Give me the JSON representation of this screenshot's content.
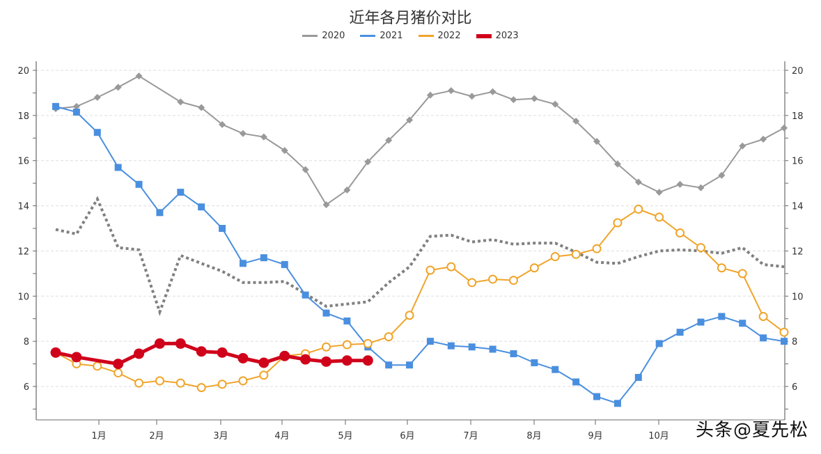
{
  "header": {
    "title": "近年各月猪价对比"
  },
  "legend": [
    {
      "label": "2020",
      "color": "#999999"
    },
    {
      "label": "2021",
      "color": "#4a8fdf"
    },
    {
      "label": "2022",
      "color": "#f0a42a"
    },
    {
      "label": "2023",
      "color": "#d0021b"
    }
  ],
  "watermark": "头条@夏先松",
  "chart_data": {
    "type": "line",
    "title": "近年各月猪价对比",
    "xlabel": "",
    "ylabel": "",
    "ylim": [
      4.6,
      20.5
    ],
    "y_ticks": [
      6,
      8,
      10,
      12,
      14,
      16,
      18,
      20
    ],
    "secondary_y_ticks": [
      6,
      8,
      10,
      12,
      14,
      16,
      18,
      20
    ],
    "grid": "horizontal dashed",
    "legend_position": "top",
    "x_tick_labels": [
      "1月",
      "2月",
      "3月",
      "4月",
      "5月",
      "6月",
      "7月",
      "8月",
      "9月",
      "10月"
    ],
    "x_points_note": "36 ten-day periods (上/中/下旬) per year",
    "series": [
      {
        "name": "2020",
        "style": "solid grey line, diamond markers",
        "values": [
          18.3,
          18.4,
          18.8,
          19.25,
          19.75,
          null,
          18.6,
          18.35,
          17.6,
          17.2,
          17.05,
          16.45,
          15.6,
          14.05,
          14.7,
          15.95,
          16.9,
          17.8,
          18.9,
          19.1,
          18.85,
          19.05,
          18.7,
          18.75,
          18.5,
          17.75,
          16.85,
          15.85,
          15.05,
          14.6,
          14.95,
          14.8,
          15.35,
          16.65,
          16.95,
          17.45
        ]
      },
      {
        "name": "2020 (dotted reference)",
        "style": "dotted dark grey line, no markers",
        "values": [
          12.95,
          12.75,
          14.3,
          12.15,
          12.05,
          9.3,
          11.8,
          11.45,
          11.1,
          10.6,
          10.6,
          10.65,
          10.1,
          9.55,
          9.65,
          9.75,
          10.6,
          11.3,
          12.65,
          12.7,
          12.4,
          12.5,
          12.3,
          12.35,
          12.35,
          11.95,
          11.5,
          11.45,
          11.75,
          12.0,
          12.05,
          12.0,
          11.9,
          12.15,
          11.4,
          11.3
        ]
      },
      {
        "name": "2021",
        "style": "solid blue line, square markers",
        "values": [
          18.4,
          18.15,
          17.25,
          15.7,
          14.95,
          13.7,
          14.6,
          13.95,
          13.0,
          11.45,
          11.7,
          11.4,
          10.05,
          9.25,
          8.9,
          7.75,
          6.95,
          6.95,
          8.0,
          7.8,
          7.75,
          7.65,
          7.45,
          7.05,
          6.75,
          6.2,
          5.55,
          5.25,
          6.4,
          7.9,
          8.4,
          8.85,
          9.1,
          8.8,
          8.15,
          8.0
        ]
      },
      {
        "name": "2022",
        "style": "solid orange line, hollow circle markers",
        "values": [
          7.5,
          7.0,
          6.9,
          6.6,
          6.15,
          6.25,
          6.15,
          5.95,
          6.1,
          6.25,
          6.5,
          7.35,
          7.45,
          7.75,
          7.85,
          7.9,
          8.2,
          9.15,
          11.15,
          11.3,
          10.6,
          10.75,
          10.7,
          11.25,
          11.75,
          11.85,
          12.1,
          13.25,
          13.85,
          13.5,
          12.8,
          12.15,
          11.25,
          11.0,
          9.1,
          8.4
        ]
      },
      {
        "name": "2023",
        "style": "thick red line, filled circle markers",
        "values": [
          7.5,
          7.3,
          null,
          7.0,
          7.45,
          7.9,
          7.9,
          7.55,
          7.5,
          7.25,
          7.05,
          7.35,
          7.2,
          7.1,
          7.15,
          7.15
        ]
      }
    ]
  }
}
